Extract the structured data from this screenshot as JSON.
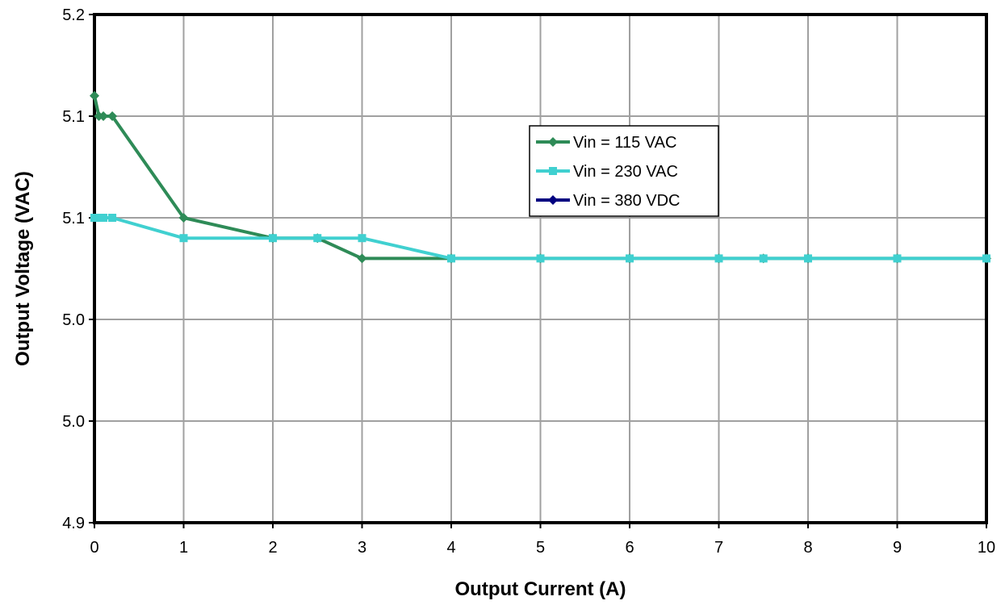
{
  "chart_data": {
    "type": "line",
    "title": "",
    "xlabel": "Output Current (A)",
    "ylabel": "Output Voltage (VAC)",
    "xlim": [
      0,
      10
    ],
    "ylim": [
      4.9,
      5.2
    ],
    "x_ticks": [
      0,
      1,
      2,
      3,
      4,
      5,
      6,
      7,
      8,
      9,
      10
    ],
    "x_tick_labels": [
      "0",
      "1",
      "2",
      "3",
      "4",
      "5",
      "6",
      "7",
      "8",
      "9",
      "10"
    ],
    "y_ticks": [
      4.9,
      4.96,
      5.02,
      5.08,
      5.14,
      5.2
    ],
    "y_tick_labels": [
      "4.9",
      "5.0",
      "5.0",
      "5.1",
      "5.1",
      "5.2"
    ],
    "grid": true,
    "legend_position": "center-right",
    "series": [
      {
        "name": "Vin = 115 VAC",
        "color": "#2e8b57",
        "marker": "diamond",
        "x": [
          0,
          0.05,
          0.1,
          0.2,
          1,
          2,
          2.5,
          3,
          4,
          5,
          6,
          7,
          7.5,
          8,
          9,
          10
        ],
        "y": [
          5.152,
          5.14,
          5.14,
          5.14,
          5.08,
          5.068,
          5.068,
          5.056,
          5.056,
          5.056,
          5.056,
          5.056,
          5.056,
          5.056,
          5.056,
          5.056
        ]
      },
      {
        "name": "Vin = 230 VAC",
        "color": "#40d0d0",
        "marker": "square",
        "x": [
          0,
          0.05,
          0.1,
          0.2,
          1,
          2,
          2.5,
          3,
          4,
          5,
          6,
          7,
          7.5,
          8,
          9,
          10
        ],
        "y": [
          5.08,
          5.08,
          5.08,
          5.08,
          5.068,
          5.068,
          5.068,
          5.068,
          5.056,
          5.056,
          5.056,
          5.056,
          5.056,
          5.056,
          5.056,
          5.056
        ]
      },
      {
        "name": "Vin = 380 VDC",
        "color": "#000080",
        "marker": "diamond",
        "x": [],
        "y": []
      }
    ]
  }
}
